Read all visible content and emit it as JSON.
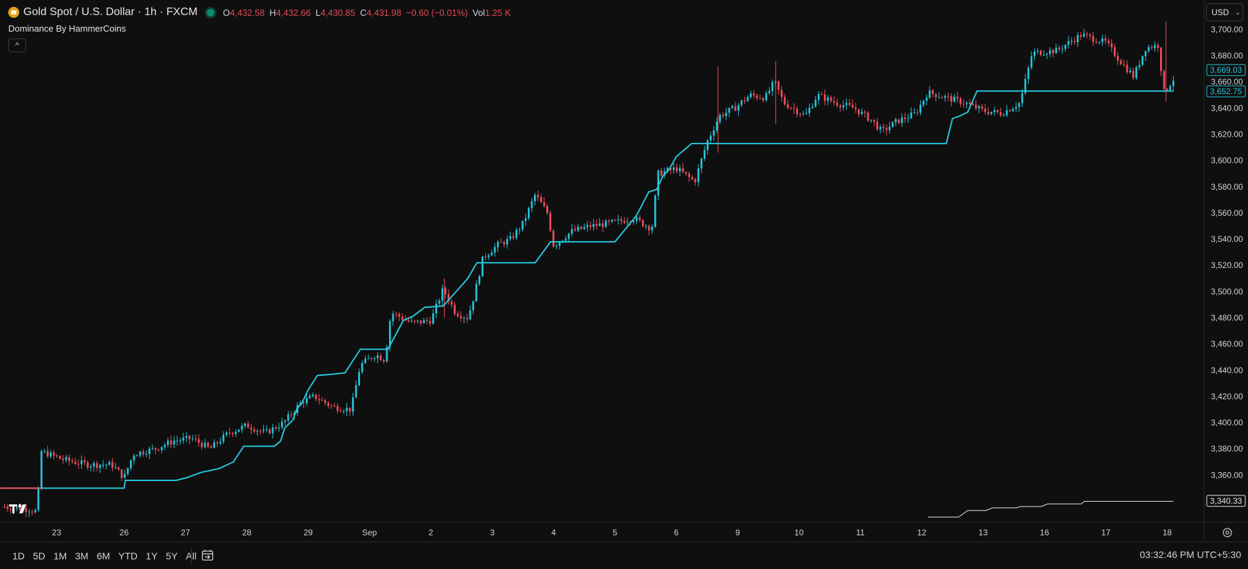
{
  "header": {
    "symbol_title": "Gold Spot / U.S. Dollar · 1h · FXCM",
    "ohlc": [
      {
        "label": "O",
        "value": "4,432.58"
      },
      {
        "label": "H",
        "value": "4,432.66"
      },
      {
        "label": "L",
        "value": "4,430.85"
      },
      {
        "label": "C",
        "value": "4,431.98"
      }
    ],
    "change": "−0.60 (−0.01%)",
    "volume_label": "Vol",
    "volume_value": "1.25 K",
    "indicator_name": "Dominance By HammerCoins",
    "collapse_glyph": "^",
    "currency": "USD",
    "currency_chevron": "⌄"
  },
  "bottom_bar": {
    "ranges": [
      "1D",
      "5D",
      "1M",
      "3M",
      "6M",
      "YTD",
      "1Y",
      "5Y",
      "All"
    ],
    "clock": "03:32:46 PM UTC+5:30"
  },
  "colors": {
    "background": "#0f0f0f",
    "up": "#26c6da",
    "down": "#f0505e",
    "dominance": "#26c6da",
    "grid": "#1c1c1c",
    "axis_text": "#d1d4dc",
    "accent_red": "#e64a55"
  },
  "chart_data": {
    "type": "candlestick",
    "title": "Gold Spot / U.S. Dollar · 1h · FXCM",
    "xlabel": "",
    "ylabel": "",
    "ylim": [
      3324,
      3712
    ],
    "grid": false,
    "y_ticks": [
      "3,360.00",
      "3,380.00",
      "3,400.00",
      "3,420.00",
      "3,440.00",
      "3,460.00",
      "3,480.00",
      "3,500.00",
      "3,520.00",
      "3,540.00",
      "3,560.00",
      "3,580.00",
      "3,600.00",
      "3,620.00",
      "3,640.00",
      "3,660.00",
      "3,680.00",
      "3,700.00"
    ],
    "x_ticks": [
      {
        "label": "23",
        "x": 0.9
      },
      {
        "label": "26",
        "x": 2.0
      },
      {
        "label": "27",
        "x": 3.0
      },
      {
        "label": "28",
        "x": 4.0
      },
      {
        "label": "29",
        "x": 5.0
      },
      {
        "label": "Sep",
        "x": 6.0
      },
      {
        "label": "2",
        "x": 7.0
      },
      {
        "label": "3",
        "x": 8.0
      },
      {
        "label": "4",
        "x": 9.0
      },
      {
        "label": "5",
        "x": 10.0
      },
      {
        "label": "6",
        "x": 11.0
      },
      {
        "label": "9",
        "x": 12.0
      },
      {
        "label": "10",
        "x": 13.0
      },
      {
        "label": "11",
        "x": 14.0
      },
      {
        "label": "12",
        "x": 15.0
      },
      {
        "label": "13",
        "x": 16.0
      },
      {
        "label": "16",
        "x": 17.0
      },
      {
        "label": "17",
        "x": 18.0
      },
      {
        "label": "18",
        "x": 19.0
      }
    ],
    "price_close_path": [
      [
        0.0,
        3336
      ],
      [
        0.45,
        3334
      ],
      [
        0.58,
        3332
      ],
      [
        0.65,
        3378
      ],
      [
        1.0,
        3372
      ],
      [
        1.4,
        3368
      ],
      [
        1.8,
        3368
      ],
      [
        2.0,
        3358
      ],
      [
        2.15,
        3376
      ],
      [
        2.5,
        3380
      ],
      [
        2.8,
        3386
      ],
      [
        3.1,
        3388
      ],
      [
        3.4,
        3380
      ],
      [
        3.7,
        3392
      ],
      [
        4.0,
        3398
      ],
      [
        4.3,
        3392
      ],
      [
        4.6,
        3400
      ],
      [
        4.9,
        3416
      ],
      [
        5.1,
        3420
      ],
      [
        5.4,
        3412
      ],
      [
        5.7,
        3410
      ],
      [
        5.85,
        3444
      ],
      [
        6.1,
        3452
      ],
      [
        6.25,
        3448
      ],
      [
        6.35,
        3484
      ],
      [
        6.7,
        3476
      ],
      [
        7.0,
        3478
      ],
      [
        7.2,
        3502
      ],
      [
        7.4,
        3484
      ],
      [
        7.6,
        3480
      ],
      [
        7.7,
        3496
      ],
      [
        7.85,
        3526
      ],
      [
        8.1,
        3536
      ],
      [
        8.3,
        3540
      ],
      [
        8.5,
        3552
      ],
      [
        8.7,
        3574
      ],
      [
        8.9,
        3560
      ],
      [
        9.0,
        3535
      ],
      [
        9.3,
        3546
      ],
      [
        9.6,
        3550
      ],
      [
        9.9,
        3552
      ],
      [
        10.3,
        3556
      ],
      [
        10.6,
        3548
      ],
      [
        10.7,
        3590
      ],
      [
        11.0,
        3594
      ],
      [
        11.3,
        3584
      ],
      [
        11.5,
        3614
      ],
      [
        11.7,
        3634
      ],
      [
        11.95,
        3640
      ],
      [
        12.2,
        3650
      ],
      [
        12.45,
        3648
      ],
      [
        12.6,
        3660
      ],
      [
        12.75,
        3644
      ],
      [
        12.9,
        3640
      ],
      [
        13.1,
        3634
      ],
      [
        13.3,
        3650
      ],
      [
        13.6,
        3644
      ],
      [
        13.9,
        3640
      ],
      [
        14.2,
        3630
      ],
      [
        14.35,
        3622
      ],
      [
        14.6,
        3630
      ],
      [
        14.9,
        3636
      ],
      [
        15.1,
        3652
      ],
      [
        15.4,
        3648
      ],
      [
        15.7,
        3644
      ],
      [
        16.0,
        3638
      ],
      [
        16.3,
        3636
      ],
      [
        16.6,
        3644
      ],
      [
        16.8,
        3682
      ],
      [
        17.2,
        3684
      ],
      [
        17.6,
        3696
      ],
      [
        18.0,
        3690
      ],
      [
        18.2,
        3678
      ],
      [
        18.45,
        3664
      ],
      [
        18.65,
        3686
      ],
      [
        18.85,
        3688
      ],
      [
        18.95,
        3652
      ],
      [
        19.1,
        3662
      ]
    ],
    "price_label": "3,669.03",
    "dominance_label": "3,652.75",
    "lower_label": "3,340.33",
    "dominance_steps": [
      [
        0.0,
        3350
      ],
      [
        1.5,
        3350
      ],
      [
        2.0,
        3350
      ],
      [
        2.02,
        3356
      ],
      [
        2.85,
        3356
      ],
      [
        3.02,
        3358
      ],
      [
        3.25,
        3362
      ],
      [
        3.55,
        3365
      ],
      [
        3.78,
        3370
      ],
      [
        3.95,
        3382
      ],
      [
        4.45,
        3382
      ],
      [
        4.55,
        3386
      ],
      [
        4.62,
        3396
      ],
      [
        4.75,
        3402
      ],
      [
        4.82,
        3411
      ],
      [
        4.9,
        3415
      ],
      [
        5.0,
        3425
      ],
      [
        5.15,
        3436
      ],
      [
        5.4,
        3437
      ],
      [
        5.6,
        3438
      ],
      [
        5.85,
        3456
      ],
      [
        6.3,
        3456
      ],
      [
        6.55,
        3478
      ],
      [
        6.7,
        3481
      ],
      [
        6.9,
        3488
      ],
      [
        7.2,
        3489
      ],
      [
        7.45,
        3502
      ],
      [
        7.6,
        3510
      ],
      [
        7.75,
        3522
      ],
      [
        8.7,
        3522
      ],
      [
        8.95,
        3538
      ],
      [
        9.3,
        3538
      ],
      [
        10.0,
        3538
      ],
      [
        10.35,
        3558
      ],
      [
        10.55,
        3576
      ],
      [
        10.68,
        3578
      ],
      [
        10.78,
        3588
      ],
      [
        10.88,
        3593
      ],
      [
        11.0,
        3603
      ],
      [
        11.25,
        3613
      ],
      [
        12.9,
        3613
      ],
      [
        13.0,
        3613
      ],
      [
        15.4,
        3613
      ],
      [
        15.5,
        3632
      ],
      [
        15.62,
        3634
      ],
      [
        15.75,
        3637
      ],
      [
        15.9,
        3653
      ],
      [
        17.0,
        3653
      ],
      [
        19.1,
        3653
      ]
    ],
    "lower_line_steps": [
      [
        15.1,
        3328
      ],
      [
        15.6,
        3328
      ],
      [
        15.75,
        3333
      ],
      [
        16.05,
        3333
      ],
      [
        16.15,
        3335
      ],
      [
        16.55,
        3335
      ],
      [
        16.6,
        3336
      ],
      [
        16.95,
        3336
      ],
      [
        17.05,
        3338
      ],
      [
        17.6,
        3338
      ],
      [
        17.65,
        3340
      ],
      [
        19.1,
        3340
      ]
    ],
    "series": [
      {
        "name": "",
        "type": "candles"
      },
      {
        "name": "",
        "type": "step-line"
      },
      {
        "name": "",
        "type": "step-line"
      }
    ]
  }
}
